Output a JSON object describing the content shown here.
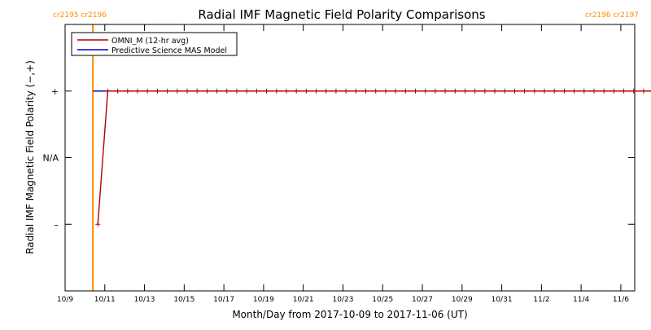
{
  "chart_data": {
    "type": "line",
    "title": "Radial IMF Magnetic Field Polarity Comparisons",
    "xlabel": "Month/Day from 2017-10-09 to 2017-11-06 (UT)",
    "ylabel": "Radial IMF Magnetic Field Polarity (−,+)",
    "x_unit": "days since 2017-10-09 00:00 UT",
    "xlim": [
      0,
      28.7
    ],
    "x_ticks": [
      {
        "x": 0,
        "label": "10/9"
      },
      {
        "x": 2,
        "label": "10/11"
      },
      {
        "x": 4,
        "label": "10/13"
      },
      {
        "x": 6,
        "label": "10/15"
      },
      {
        "x": 8,
        "label": "10/17"
      },
      {
        "x": 10,
        "label": "10/19"
      },
      {
        "x": 12,
        "label": "10/21"
      },
      {
        "x": 14,
        "label": "10/23"
      },
      {
        "x": 16,
        "label": "10/25"
      },
      {
        "x": 18,
        "label": "10/27"
      },
      {
        "x": 20,
        "label": "10/29"
      },
      {
        "x": 22,
        "label": "10/31"
      },
      {
        "x": 24,
        "label": "11/2"
      },
      {
        "x": 26,
        "label": "11/4"
      },
      {
        "x": 28,
        "label": "11/6"
      }
    ],
    "ylim": [
      -2,
      2
    ],
    "y_ticks": [
      {
        "y": 1,
        "label": "+"
      },
      {
        "y": 0,
        "label": "N/A"
      },
      {
        "y": -1,
        "label": "–"
      }
    ],
    "carrington_markers": [
      {
        "x": 1.4,
        "label": "cr2195 cr2196",
        "side": "left"
      },
      {
        "x": 29.6,
        "label": "cr2196 cr2197",
        "side": "right"
      }
    ],
    "legend_position": "top-left",
    "series": [
      {
        "name": "OMNI_M (12-hr avg)",
        "color": "#b00000",
        "markers": true,
        "x": [
          1.65,
          2.15,
          2.65,
          3.15,
          3.65,
          4.15,
          4.65,
          5.15,
          5.65,
          6.15,
          6.65,
          7.15,
          7.65,
          8.15,
          8.65,
          9.15,
          9.65,
          10.15,
          10.65,
          11.15,
          11.65,
          12.15,
          12.65,
          13.15,
          13.65,
          14.15,
          14.65,
          15.15,
          15.65,
          16.15,
          16.65,
          17.15,
          17.65,
          18.15,
          18.65,
          19.15,
          19.65,
          20.15,
          20.65,
          21.15,
          21.65,
          22.15,
          22.65,
          23.15,
          23.65,
          24.15,
          24.65,
          25.15,
          25.65,
          26.15,
          26.65,
          27.15,
          27.65,
          28.15,
          28.65,
          29.15,
          29.65
        ],
        "y": [
          -1,
          1,
          1,
          1,
          1,
          1,
          1,
          1,
          1,
          1,
          1,
          1,
          1,
          1,
          1,
          1,
          1,
          1,
          1,
          1,
          1,
          1,
          1,
          1,
          1,
          1,
          1,
          1,
          1,
          1,
          1,
          1,
          1,
          1,
          1,
          1,
          1,
          1,
          1,
          1,
          1,
          1,
          1,
          1,
          1,
          1,
          1,
          1,
          1,
          1,
          1,
          1,
          1,
          1,
          1,
          1,
          1
        ]
      },
      {
        "name": "Predictive Science MAS Model",
        "color": "#0000c0",
        "markers": false,
        "x": [
          1.4,
          29.6
        ],
        "y": [
          1,
          1
        ]
      }
    ]
  }
}
